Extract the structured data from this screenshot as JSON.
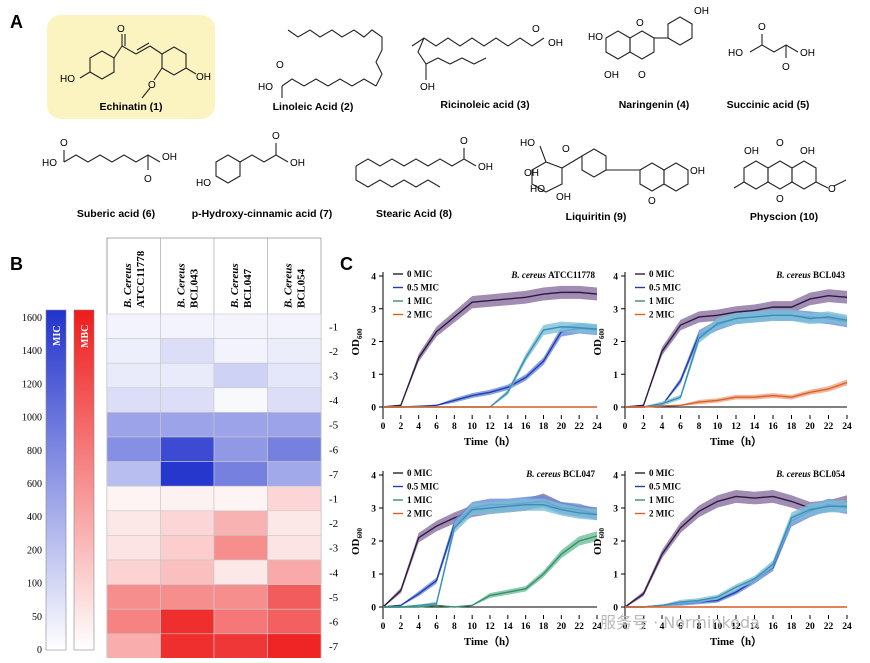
{
  "panels": {
    "a": "A",
    "b": "B",
    "c": "C"
  },
  "compounds": [
    {
      "label": "Echinatin (1)",
      "highlight": "#fbf3c0"
    },
    {
      "label": "Linoleic Acid (2)"
    },
    {
      "label": "Ricinoleic acid (3)"
    },
    {
      "label": "Naringenin (4)"
    },
    {
      "label": "Succinic acid (5)"
    },
    {
      "label": "Suberic acid (6)"
    },
    {
      "label": "p-Hydroxy-cinnamic acid (7)"
    },
    {
      "label": "Stearic Acid (8)"
    },
    {
      "label": "Liquiritin (9)"
    },
    {
      "label": "Physcion (10)"
    }
  ],
  "atoms": {
    "o": "O",
    "oh": "OH",
    "ho": "HO"
  },
  "heatmap": {
    "scale_ticks": [
      "1600",
      "1400",
      "1200",
      "1000",
      "800",
      "600",
      "400",
      "200",
      "100",
      "50",
      "0"
    ],
    "mic_label": "MIC",
    "mbc_label": "MBC",
    "mic_color": "#2233cc",
    "mbc_color": "#ee1c1c",
    "columns": [
      {
        "species": "B. Cereus",
        "strain": "ATCC11778"
      },
      {
        "species": "B. Cereus",
        "strain": "BCL043"
      },
      {
        "species": "B. Cereus",
        "strain": "BCL047"
      },
      {
        "species": "B. Cereus",
        "strain": "BCL054"
      }
    ],
    "row_labels": [
      "-1",
      "-2",
      "-3",
      "-4",
      "-5",
      "-6",
      "-7",
      "-1",
      "-2",
      "-3",
      "-4",
      "-5",
      "-6",
      "-7"
    ],
    "mic_intensity": [
      [
        0.06,
        0.06,
        0.05,
        0.06
      ],
      [
        0.08,
        0.16,
        0.06,
        0.09
      ],
      [
        0.1,
        0.1,
        0.22,
        0.12
      ],
      [
        0.16,
        0.16,
        0.03,
        0.16
      ],
      [
        0.45,
        0.45,
        0.45,
        0.45
      ],
      [
        0.55,
        0.88,
        0.5,
        0.62
      ],
      [
        0.32,
        0.98,
        0.62,
        0.42
      ]
    ],
    "mbc_intensity": [
      [
        0.05,
        0.06,
        0.05,
        0.18
      ],
      [
        0.1,
        0.18,
        0.34,
        0.1
      ],
      [
        0.12,
        0.22,
        0.5,
        0.12
      ],
      [
        0.2,
        0.28,
        0.1,
        0.38
      ],
      [
        0.5,
        0.5,
        0.5,
        0.72
      ],
      [
        0.55,
        0.92,
        0.6,
        0.7
      ],
      [
        0.36,
        0.92,
        0.88,
        0.96
      ]
    ]
  },
  "chart_data": [
    {
      "type": "line",
      "title": "B. cereus ATCC11778",
      "xlabel": "Time（h）",
      "ylabel": "OD600",
      "xlim": [
        0,
        24
      ],
      "ylim": [
        0,
        4
      ],
      "x": [
        0,
        2,
        4,
        6,
        8,
        10,
        12,
        14,
        16,
        18,
        20,
        22,
        24
      ],
      "series": [
        {
          "name": "0 MIC",
          "color": "#2d1b3d",
          "band": "#8a6fa0",
          "values": [
            0,
            0.05,
            1.5,
            2.3,
            2.75,
            3.2,
            3.25,
            3.3,
            3.35,
            3.45,
            3.5,
            3.5,
            3.45
          ]
        },
        {
          "name": "0.5 MIC",
          "color": "#1f3fb0",
          "band": "#6b8ad8",
          "values": [
            0,
            0,
            0.02,
            0.05,
            0.2,
            0.35,
            0.45,
            0.6,
            0.9,
            1.4,
            2.3,
            2.4,
            2.35
          ]
        },
        {
          "name": "1 MIC",
          "color": "#3b8fb5",
          "band": "#7cc0d8",
          "values": [
            0,
            0,
            0.0,
            0.0,
            0.0,
            0.0,
            0.0,
            0.45,
            1.5,
            2.35,
            2.45,
            2.42,
            2.38
          ]
        },
        {
          "name": "2 MIC",
          "color": "#d9622b",
          "band": "#f0a37f",
          "values": [
            0,
            0,
            0,
            0,
            0,
            0,
            0,
            0,
            0,
            0,
            0,
            0,
            0
          ]
        }
      ]
    },
    {
      "type": "line",
      "title": "B. cereus BCL043",
      "xlabel": "Time（h）",
      "ylabel": "OD600",
      "xlim": [
        0,
        24
      ],
      "ylim": [
        0,
        4
      ],
      "x": [
        0,
        2,
        4,
        6,
        8,
        10,
        12,
        14,
        16,
        18,
        20,
        22,
        24
      ],
      "series": [
        {
          "name": "0 MIC",
          "color": "#2d1b3d",
          "band": "#8a6fa0",
          "values": [
            0,
            0.05,
            1.7,
            2.5,
            2.75,
            2.8,
            2.9,
            2.95,
            3.05,
            3.05,
            3.3,
            3.4,
            3.35
          ]
        },
        {
          "name": "0.5 MIC",
          "color": "#1f3fb0",
          "band": "#6b8ad8",
          "values": [
            0,
            0,
            0.05,
            0.8,
            2.2,
            2.5,
            2.7,
            2.75,
            2.8,
            2.8,
            2.75,
            2.7,
            2.6
          ]
        },
        {
          "name": "1 MIC",
          "color": "#3b8fb5",
          "band": "#7cc0d8",
          "values": [
            0,
            0,
            0.1,
            0.3,
            2.1,
            2.55,
            2.7,
            2.75,
            2.8,
            2.8,
            2.7,
            2.75,
            2.65
          ]
        },
        {
          "name": "2 MIC",
          "color": "#d9622b",
          "band": "#f0a37f",
          "values": [
            0,
            0,
            0.03,
            0.05,
            0.15,
            0.2,
            0.3,
            0.3,
            0.35,
            0.3,
            0.45,
            0.55,
            0.75
          ]
        }
      ]
    },
    {
      "type": "line",
      "title": "B. cereus BCL047",
      "xlabel": "Time（h）",
      "ylabel": "OD600",
      "xlim": [
        0,
        24
      ],
      "ylim": [
        0,
        4
      ],
      "x": [
        0,
        2,
        4,
        6,
        8,
        10,
        12,
        14,
        16,
        18,
        20,
        22,
        24
      ],
      "series": [
        {
          "name": "0 MIC",
          "color": "#2d1b3d",
          "band": "#8a6fa0",
          "values": [
            0,
            0.5,
            2.1,
            2.45,
            2.7,
            2.9,
            3.0,
            3.05,
            3.1,
            3.25,
            3.0,
            2.9,
            2.85
          ]
        },
        {
          "name": "0.5 MIC",
          "color": "#1f3fb0",
          "band": "#6b8ad8",
          "values": [
            0,
            0.05,
            0.4,
            0.8,
            2.5,
            3.0,
            3.1,
            3.1,
            3.15,
            3.2,
            3.0,
            2.95,
            2.8
          ]
        },
        {
          "name": "1 MIC",
          "color": "#3b8fb5",
          "band": "#7cc0d8",
          "values": [
            0,
            0,
            0.05,
            0.1,
            2.4,
            2.95,
            3.0,
            3.05,
            3.1,
            3.1,
            2.95,
            2.85,
            2.8
          ]
        },
        {
          "name": "2 MIC",
          "color": "#3b8e6a",
          "band": "#6fbf9b",
          "values": [
            0,
            0,
            0,
            0.05,
            0.0,
            0.05,
            0.35,
            0.45,
            0.55,
            1.0,
            1.6,
            2.0,
            2.15
          ]
        }
      ]
    },
    {
      "type": "line",
      "title": "B. cereus BCL054",
      "xlabel": "Time（h）",
      "ylabel": "OD600",
      "xlim": [
        0,
        24
      ],
      "ylim": [
        0,
        4
      ],
      "x": [
        0,
        2,
        4,
        6,
        8,
        10,
        12,
        14,
        16,
        18,
        20,
        22,
        24
      ],
      "series": [
        {
          "name": "0 MIC",
          "color": "#2d1b3d",
          "band": "#8a6fa0",
          "values": [
            0,
            0.4,
            1.6,
            2.4,
            2.9,
            3.2,
            3.35,
            3.3,
            3.35,
            3.2,
            3.0,
            3.05,
            3.2
          ]
        },
        {
          "name": "0.5 MIC",
          "color": "#1f3fb0",
          "band": "#6b8ad8",
          "values": [
            0,
            0,
            0.05,
            0.1,
            0.15,
            0.2,
            0.45,
            0.8,
            1.2,
            2.6,
            2.9,
            3.1,
            3.0
          ]
        },
        {
          "name": "1 MIC",
          "color": "#3b8fb5",
          "band": "#7cc0d8",
          "values": [
            0,
            0,
            0.05,
            0.15,
            0.2,
            0.3,
            0.6,
            0.85,
            1.3,
            2.7,
            2.95,
            3.05,
            3.05
          ]
        },
        {
          "name": "2 MIC",
          "color": "#d9622b",
          "band": "#f0a37f",
          "values": [
            0,
            0,
            0,
            0,
            0,
            0,
            0,
            0,
            0,
            0,
            0,
            0,
            0
          ]
        }
      ]
    }
  ],
  "legend_extra_colors": {
    "mic1": "#3b8e6a",
    "mic2": "#d9622b"
  },
  "watermark": "服务号 · Norminkoda"
}
